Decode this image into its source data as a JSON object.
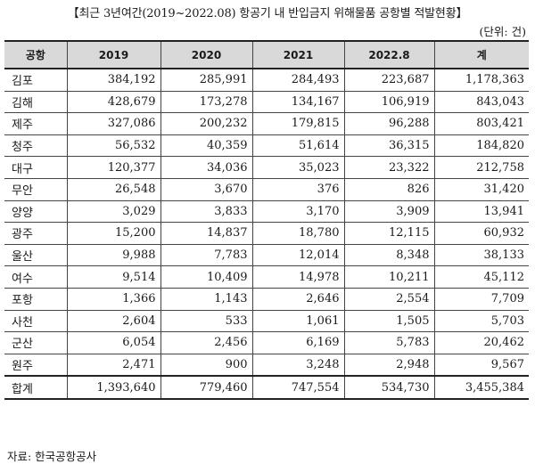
{
  "title": "【최근 3년여간(2019~2022.08) 항공기 내 반입금지 위해물품 공항별 적발현황】",
  "unit": "(단위: 건)",
  "columns": [
    "공항",
    "2019",
    "2020",
    "2021",
    "2022.8",
    "계"
  ],
  "rows": [
    {
      "name": "김포",
      "values": [
        "384,192",
        "285,991",
        "284,493",
        "223,687",
        "1,178,363"
      ]
    },
    {
      "name": "김해",
      "values": [
        "428,679",
        "173,278",
        "134,167",
        "106,919",
        "843,043"
      ]
    },
    {
      "name": "제주",
      "values": [
        "327,086",
        "200,232",
        "179,815",
        "96,288",
        "803,421"
      ]
    },
    {
      "name": "청주",
      "values": [
        "56,532",
        "40,359",
        "51,614",
        "36,315",
        "184,820"
      ]
    },
    {
      "name": "대구",
      "values": [
        "120,377",
        "34,036",
        "35,023",
        "23,322",
        "212,758"
      ]
    },
    {
      "name": "무안",
      "values": [
        "26,548",
        "3,670",
        "376",
        "826",
        "31,420"
      ]
    },
    {
      "name": "양양",
      "values": [
        "3,029",
        "3,833",
        "3,170",
        "3,909",
        "13,941"
      ]
    },
    {
      "name": "광주",
      "values": [
        "15,200",
        "14,837",
        "18,780",
        "12,115",
        "60,932"
      ]
    },
    {
      "name": "울산",
      "values": [
        "9,988",
        "7,783",
        "12,014",
        "8,348",
        "38,133"
      ]
    },
    {
      "name": "여수",
      "values": [
        "9,514",
        "10,409",
        "14,978",
        "10,211",
        "45,112"
      ]
    },
    {
      "name": "포항",
      "values": [
        "1,366",
        "1,143",
        "2,646",
        "2,554",
        "7,709"
      ]
    },
    {
      "name": "사천",
      "values": [
        "2,604",
        "533",
        "1,061",
        "1,505",
        "5,703"
      ]
    },
    {
      "name": "군산",
      "values": [
        "6,054",
        "2,456",
        "6,169",
        "5,783",
        "20,462"
      ]
    },
    {
      "name": "원주",
      "values": [
        "2,471",
        "900",
        "3,248",
        "2,948",
        "9,567"
      ]
    }
  ],
  "total": {
    "name": "합계",
    "values": [
      "1,393,640",
      "779,460",
      "747,554",
      "534,730",
      "3,455,384"
    ]
  },
  "source": "자료: 한국공항공사"
}
